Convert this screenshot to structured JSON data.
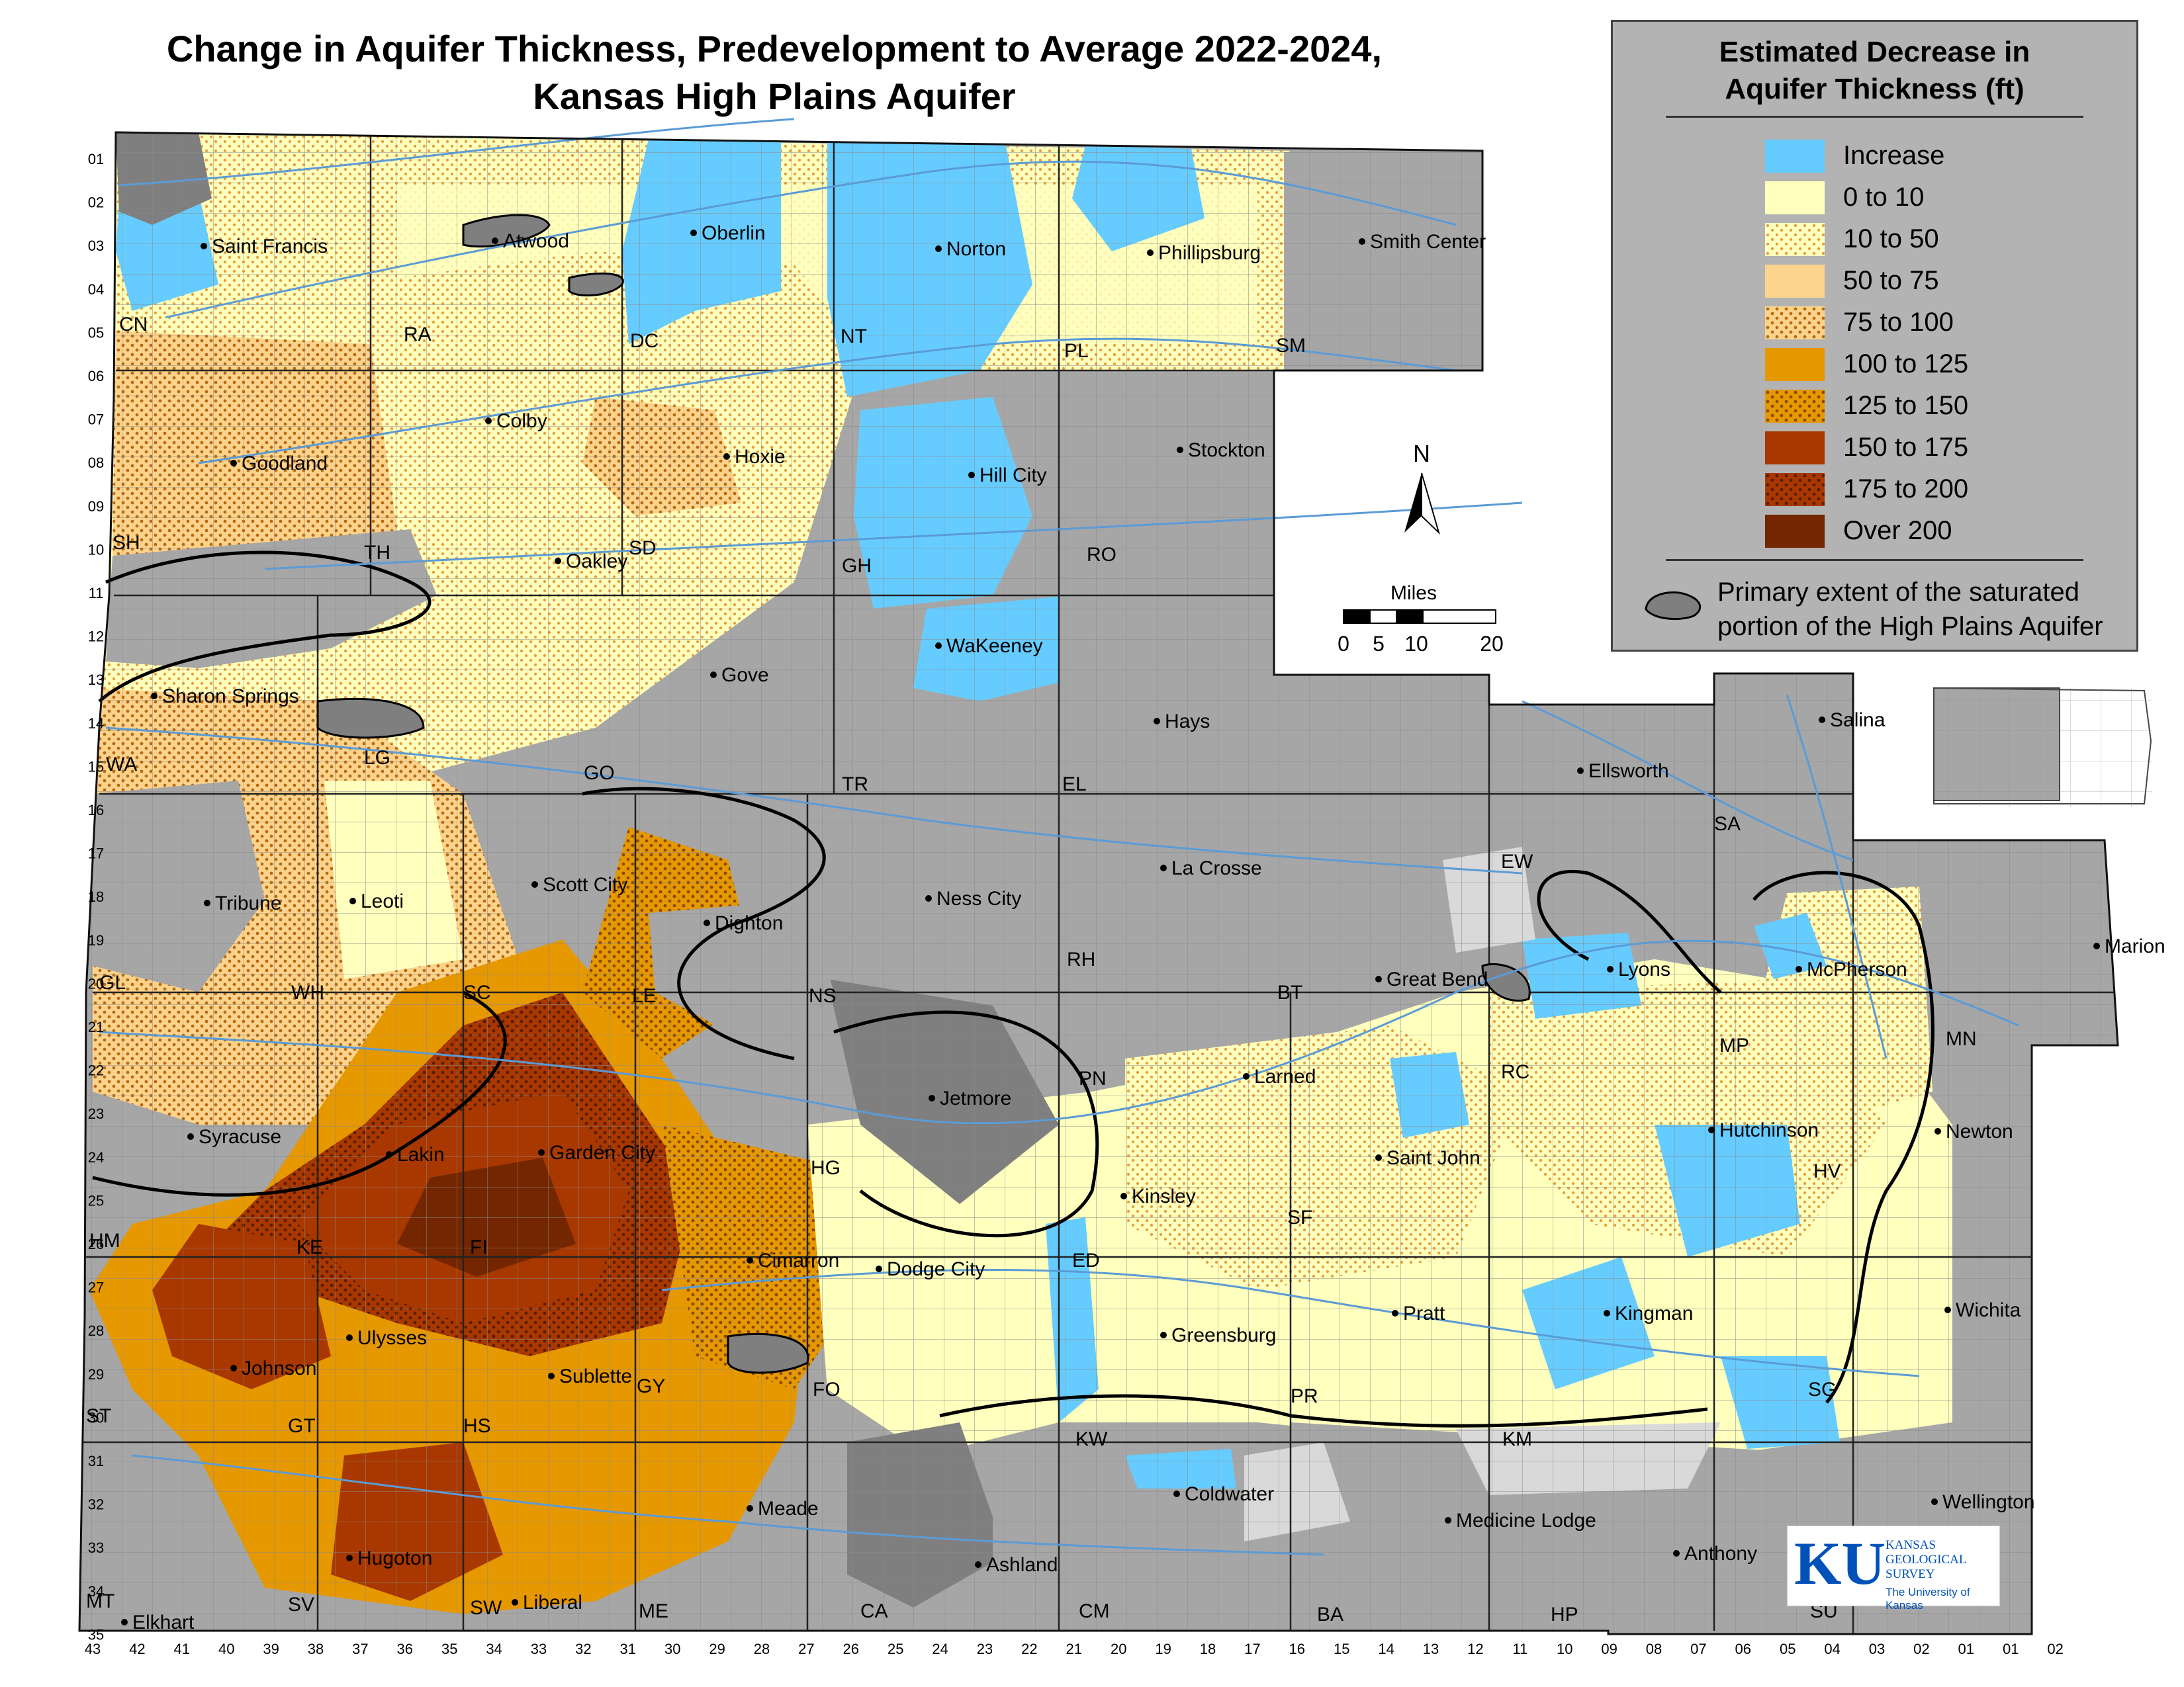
{
  "title_line1": "Change in Aquifer Thickness, Predevelopment to Average 2022-2024,",
  "title_line2": "Kansas High Plains Aquifer",
  "legend": {
    "title_line1": "Estimated Decrease in",
    "title_line2": "Aquifer Thickness (ft)",
    "classes": [
      {
        "label": "Increase",
        "color": "#66ccff",
        "dotted": false
      },
      {
        "label": "0 to 10",
        "color": "#ffffbe",
        "dotted": false
      },
      {
        "label": "10 to 50",
        "color": "#ffffbe",
        "dotted": true
      },
      {
        "label": "50 to 75",
        "color": "#fcd38c",
        "dotted": false
      },
      {
        "label": "75 to 100",
        "color": "#fcd38c",
        "dotted": true
      },
      {
        "label": "100 to 125",
        "color": "#e69800",
        "dotted": false
      },
      {
        "label": "125 to 150",
        "color": "#e69800",
        "dotted": true
      },
      {
        "label": "150 to 175",
        "color": "#a83800",
        "dotted": false
      },
      {
        "label": "175 to 200",
        "color": "#a83800",
        "dotted": true
      },
      {
        "label": "Over 200",
        "color": "#732600",
        "dotted": false
      }
    ],
    "extent_line1": "Primary extent of the saturated",
    "extent_line2": "portion of the High Plains Aquifer"
  },
  "north_label": "N",
  "scale": {
    "title": "Miles",
    "ticks": [
      "0",
      "5",
      "10",
      "20"
    ]
  },
  "cities": [
    {
      "name": "Saint Francis"
    },
    {
      "name": "Atwood"
    },
    {
      "name": "Oberlin"
    },
    {
      "name": "Norton"
    },
    {
      "name": "Phillipsburg"
    },
    {
      "name": "Smith Center"
    },
    {
      "name": "Goodland"
    },
    {
      "name": "Colby"
    },
    {
      "name": "Hoxie"
    },
    {
      "name": "Hill City"
    },
    {
      "name": "Stockton"
    },
    {
      "name": "Oakley"
    },
    {
      "name": "WaKeeney"
    },
    {
      "name": "Gove"
    },
    {
      "name": "Sharon Springs"
    },
    {
      "name": "Hays"
    },
    {
      "name": "Salina"
    },
    {
      "name": "Ellsworth"
    },
    {
      "name": "Tribune"
    },
    {
      "name": "Leoti"
    },
    {
      "name": "Scott City"
    },
    {
      "name": "Dighton"
    },
    {
      "name": "Ness City"
    },
    {
      "name": "La Crosse"
    },
    {
      "name": "Great Bend"
    },
    {
      "name": "Lyons"
    },
    {
      "name": "McPherson"
    },
    {
      "name": "Marion"
    },
    {
      "name": "Syracuse"
    },
    {
      "name": "Lakin"
    },
    {
      "name": "Garden City"
    },
    {
      "name": "Jetmore"
    },
    {
      "name": "Larned"
    },
    {
      "name": "Hutchinson"
    },
    {
      "name": "Newton"
    },
    {
      "name": "Saint John"
    },
    {
      "name": "Kinsley"
    },
    {
      "name": "Cimarron"
    },
    {
      "name": "Dodge City"
    },
    {
      "name": "Pratt"
    },
    {
      "name": "Kingman"
    },
    {
      "name": "Wichita"
    },
    {
      "name": "Johnson"
    },
    {
      "name": "Ulysses"
    },
    {
      "name": "Sublette"
    },
    {
      "name": "Greensburg"
    },
    {
      "name": "Coldwater"
    },
    {
      "name": "Meade"
    },
    {
      "name": "Medicine Lodge"
    },
    {
      "name": "Wellington"
    },
    {
      "name": "Hugoton"
    },
    {
      "name": "Ashland"
    },
    {
      "name": "Anthony"
    },
    {
      "name": "Liberal"
    },
    {
      "name": "Elkhart"
    }
  ],
  "counties": [
    "CN",
    "RA",
    "DC",
    "NT",
    "PL",
    "SM",
    "SH",
    "TH",
    "SD",
    "GH",
    "RO",
    "WA",
    "LG",
    "GO",
    "TR",
    "EL",
    "SA",
    "EW",
    "GL",
    "WH",
    "SC",
    "LE",
    "NS",
    "RH",
    "BT",
    "RC",
    "MP",
    "MN",
    "HM",
    "KE",
    "FI",
    "HG",
    "PN",
    "HV",
    "SF",
    "ED",
    "GY",
    "ST",
    "GT",
    "HS",
    "FO",
    "KW",
    "PR",
    "KM",
    "SG",
    "MT",
    "SV",
    "SW",
    "ME",
    "CA",
    "CM",
    "BA",
    "HP",
    "SU"
  ],
  "township_labels": [
    "01",
    "02",
    "03",
    "04",
    "05",
    "06",
    "07",
    "08",
    "09",
    "10",
    "11",
    "12",
    "13",
    "14",
    "15",
    "16",
    "17",
    "18",
    "19",
    "20",
    "21",
    "22",
    "23",
    "24",
    "25",
    "26",
    "27",
    "28",
    "29",
    "30",
    "31",
    "32",
    "33",
    "34",
    "35"
  ],
  "range_labels": [
    "43",
    "42",
    "41",
    "40",
    "39",
    "38",
    "37",
    "36",
    "35",
    "34",
    "33",
    "32",
    "31",
    "30",
    "29",
    "28",
    "27",
    "26",
    "25",
    "24",
    "23",
    "22",
    "21",
    "20",
    "19",
    "18",
    "17",
    "16",
    "15",
    "14",
    "13",
    "12",
    "11",
    "10",
    "09",
    "08",
    "07",
    "06",
    "05",
    "04",
    "03",
    "02",
    "01",
    "01",
    "02"
  ],
  "logo": {
    "mark": "KU",
    "line1": "KANSAS",
    "line2": "GEOLOGICAL",
    "line3": "SURVEY",
    "line4": "The University of Kansas"
  }
}
